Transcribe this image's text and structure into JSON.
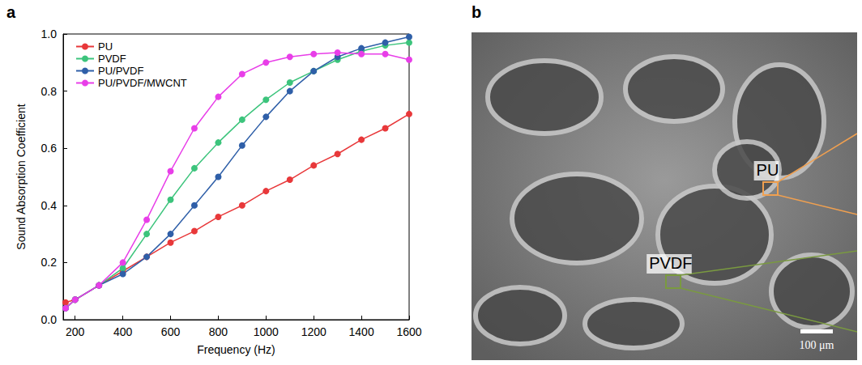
{
  "chart_data": {
    "type": "line",
    "panel_label": "a",
    "x_label": "Frequency (Hz)",
    "y_label": "Sound Absorption Coefficient",
    "x": [
      160,
      200,
      300,
      400,
      500,
      600,
      700,
      800,
      900,
      1000,
      1100,
      1200,
      1300,
      1400,
      1500,
      1600
    ],
    "series": [
      {
        "name": "PU",
        "color": "#e8383a",
        "marker": "circle",
        "values": [
          0.06,
          0.07,
          0.12,
          0.17,
          0.22,
          0.27,
          0.31,
          0.36,
          0.4,
          0.45,
          0.49,
          0.54,
          0.58,
          0.63,
          0.67,
          0.72
        ]
      },
      {
        "name": "PVDF",
        "color": "#3cc47c",
        "marker": "circle",
        "values": [
          0.04,
          0.07,
          0.12,
          0.18,
          0.3,
          0.42,
          0.53,
          0.62,
          0.7,
          0.77,
          0.83,
          0.87,
          0.91,
          0.94,
          0.96,
          0.97
        ]
      },
      {
        "name": "PU/PVDF",
        "color": "#2f5fa8",
        "marker": "circle",
        "values": [
          0.04,
          0.07,
          0.12,
          0.16,
          0.22,
          0.3,
          0.4,
          0.5,
          0.61,
          0.71,
          0.8,
          0.87,
          0.92,
          0.95,
          0.97,
          0.99
        ]
      },
      {
        "name": "PU/PVDF/MWCNT",
        "color": "#e83ee8",
        "marker": "circle",
        "values": [
          0.04,
          0.07,
          0.12,
          0.2,
          0.35,
          0.52,
          0.67,
          0.78,
          0.86,
          0.9,
          0.92,
          0.93,
          0.935,
          0.93,
          0.93,
          0.91
        ]
      }
    ],
    "xlim": [
      150,
      1600
    ],
    "xticks": [
      200,
      400,
      600,
      800,
      1000,
      1200,
      1400,
      1600
    ],
    "ylim": [
      0,
      1
    ],
    "yticks": [
      {
        "value": 0,
        "label": "0.0"
      },
      {
        "value": 0.2,
        "label": "0.2"
      },
      {
        "value": 0.4,
        "label": "0.4"
      },
      {
        "value": 0.6,
        "label": "0.6"
      },
      {
        "value": 0.8,
        "label": "0.8"
      },
      {
        "value": 1,
        "label": "1.0"
      }
    ],
    "grid": false,
    "legend": "top-left"
  },
  "image_panel": {
    "panel_label": "b",
    "annotations": [
      {
        "text": "PU",
        "color": "#f0a050"
      },
      {
        "text": "PVDF",
        "color": "#7a9a40"
      }
    ],
    "scale_bar": "100 μm"
  }
}
